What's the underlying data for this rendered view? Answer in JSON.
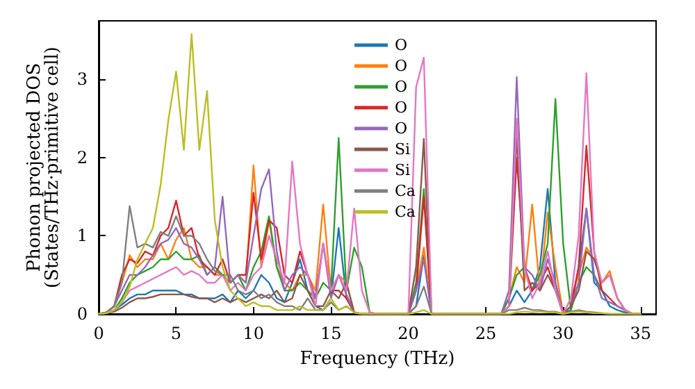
{
  "chart_data": {
    "type": "line",
    "xlabel": "Frequency (THz)",
    "ylabel": "Phonon projected DOS\n(States/THz·primitive cell)",
    "xlim": [
      0,
      36
    ],
    "ylim": [
      0,
      3.75
    ],
    "xticks": [
      0,
      5,
      10,
      15,
      20,
      25,
      30,
      35
    ],
    "yticks": [
      0,
      1,
      2,
      3
    ],
    "grid": false,
    "legend": "top",
    "marker": "none",
    "line_style": "solid",
    "x": [
      0,
      0.5,
      1,
      1.5,
      2,
      2.5,
      3,
      3.5,
      4,
      4.5,
      5,
      5.5,
      6,
      6.5,
      7,
      7.5,
      8,
      8.5,
      9,
      9.5,
      10,
      10.5,
      11,
      11.5,
      12,
      12.5,
      13,
      13.5,
      14,
      14.5,
      15,
      15.5,
      16,
      16.5,
      17,
      17.5,
      18,
      18.5,
      19,
      19.5,
      20,
      20.5,
      21,
      21.5,
      22,
      22.5,
      23,
      23.5,
      24,
      24.5,
      25,
      25.5,
      26,
      26.5,
      27,
      27.5,
      28,
      28.5,
      29,
      29.5,
      30,
      30.5,
      31,
      31.5,
      32,
      32.5,
      33,
      33.5,
      34,
      34.5,
      35
    ],
    "series": [
      {
        "name": "O",
        "color": "#1f77b4",
        "values": [
          0,
          0.01,
          0.05,
          0.12,
          0.2,
          0.25,
          0.25,
          0.3,
          0.3,
          0.3,
          0.3,
          0.25,
          0.25,
          0.2,
          0.2,
          0.2,
          0.25,
          0.15,
          0.3,
          0.2,
          0.3,
          0.5,
          0.4,
          0.2,
          0.15,
          0.4,
          0.7,
          0.3,
          0.1,
          0.05,
          0.2,
          1.1,
          0.2,
          0.02,
          0,
          0,
          0,
          0,
          0,
          0,
          0,
          0.1,
          0.75,
          0,
          0,
          0,
          0,
          0,
          0,
          0,
          0,
          0,
          0,
          0.1,
          0.3,
          0.15,
          0.3,
          0.6,
          1.6,
          0.4,
          0,
          0.05,
          0.6,
          1.35,
          0.4,
          0.3,
          0.1,
          0.05,
          0.02,
          0,
          0
        ]
      },
      {
        "name": "O",
        "color": "#ff7f0e",
        "values": [
          null,
          null,
          0.1,
          0.4,
          0.75,
          0.6,
          0.7,
          0.7,
          0.9,
          0.7,
          0.95,
          1.1,
          0.7,
          0.6,
          0.6,
          0.5,
          0.5,
          0.4,
          0.5,
          0.4,
          1.9,
          0.6,
          1.2,
          0.6,
          0.4,
          0.3,
          0.5,
          0.5,
          0.3,
          1.4,
          0.3,
          0.5,
          0.4,
          0.02,
          0,
          0,
          0,
          0,
          0,
          0,
          0,
          0.3,
          0.85,
          0,
          0,
          0,
          0,
          0,
          0,
          0,
          0,
          0,
          0,
          0.2,
          0.6,
          0.4,
          1.4,
          0.3,
          1.3,
          0.6,
          0,
          0.2,
          0.5,
          0.85,
          0.7,
          0.4,
          0.55,
          0.2,
          0.05,
          null,
          null
        ]
      },
      {
        "name": "O",
        "color": "#2ca02c",
        "values": [
          0,
          0.01,
          0.05,
          0.2,
          0.4,
          0.5,
          0.55,
          0.6,
          0.7,
          0.7,
          0.8,
          0.7,
          0.7,
          0.75,
          0.5,
          0.6,
          0.5,
          0.4,
          0.5,
          0.3,
          0.6,
          0.8,
          1.25,
          0.6,
          0.3,
          0.3,
          0.4,
          0.3,
          0.2,
          0.4,
          0.3,
          2.25,
          0.3,
          0.85,
          0.6,
          0.02,
          0,
          0,
          0,
          0,
          0,
          0.4,
          1.6,
          0,
          0,
          0,
          0,
          0,
          0,
          0,
          0,
          0,
          0,
          0.2,
          0.5,
          0.6,
          0.3,
          0.5,
          0.9,
          2.75,
          0.9,
          0.05,
          0.4,
          0.6,
          0.5,
          0.3,
          null,
          null,
          null,
          null,
          null
        ]
      },
      {
        "name": "O",
        "color": "#d62728",
        "values": [
          0,
          0.02,
          0.1,
          0.5,
          0.7,
          0.65,
          0.8,
          0.75,
          1.0,
          1.1,
          1.45,
          1.0,
          1.1,
          0.7,
          0.6,
          0.5,
          0.7,
          0.4,
          0.5,
          0.5,
          1.55,
          0.7,
          1.2,
          1.1,
          0.5,
          0.4,
          0.8,
          0.5,
          0.2,
          0.9,
          0.3,
          0.3,
          0.2,
          0.02,
          0,
          0,
          0,
          0,
          0,
          0,
          0,
          0.3,
          1.5,
          0,
          0,
          0,
          0,
          0,
          0,
          0,
          0,
          0,
          0,
          0.1,
          2.0,
          0.6,
          0.3,
          0.4,
          0.6,
          0.3,
          0,
          0.1,
          0.6,
          2.15,
          0.8,
          0.3,
          0.2,
          0.1,
          0.05,
          0,
          0
        ]
      },
      {
        "name": "O",
        "color": "#9467bd",
        "values": [
          0,
          0.02,
          0.1,
          0.3,
          0.5,
          0.5,
          0.6,
          0.75,
          0.9,
          0.95,
          1.1,
          0.9,
          0.85,
          0.7,
          0.5,
          0.6,
          1.5,
          0.4,
          0.5,
          0.4,
          1.0,
          1.6,
          1.85,
          0.8,
          0.3,
          0.5,
          0.6,
          0.5,
          0.2,
          0.9,
          0.2,
          0.5,
          0.25,
          0.02,
          0,
          0,
          0,
          0,
          0,
          0,
          0,
          0.3,
          0.7,
          0,
          0,
          0,
          0,
          0,
          0,
          0,
          0,
          0,
          0,
          0.3,
          3.03,
          0.6,
          0.5,
          0.3,
          0.7,
          0.4,
          0,
          0.1,
          0.4,
          1.35,
          0.5,
          0.2,
          0.15,
          0.1,
          0.05,
          0,
          0
        ]
      },
      {
        "name": "Si",
        "color": "#8c564b",
        "values": [
          0,
          0.01,
          0.03,
          0.08,
          0.15,
          0.2,
          0.2,
          0.22,
          0.25,
          0.25,
          0.25,
          0.25,
          0.22,
          0.2,
          0.2,
          0.15,
          0.2,
          0.15,
          0.2,
          0.15,
          0.2,
          0.25,
          0.2,
          0.3,
          0.15,
          0.2,
          0.5,
          0.3,
          0.1,
          0.1,
          0.3,
          0.2,
          0.4,
          0.02,
          0,
          0,
          0,
          0,
          0,
          0,
          0,
          0.6,
          2.24,
          0,
          0,
          0,
          0,
          0,
          0,
          0,
          0,
          0,
          0,
          0.1,
          2.3,
          0.3,
          0.4,
          0.3,
          0.5,
          0.3,
          0,
          0.1,
          0.3,
          0.8,
          0.7,
          0.4,
          0.5,
          0.2,
          0.05,
          0,
          0
        ]
      },
      {
        "name": "Si",
        "color": "#e377c2",
        "values": [
          0,
          0.01,
          0.05,
          0.15,
          0.3,
          0.35,
          0.4,
          0.45,
          0.5,
          0.55,
          0.6,
          0.5,
          0.55,
          0.5,
          0.4,
          0.4,
          0.5,
          0.3,
          0.4,
          0.3,
          0.5,
          0.6,
          1.0,
          0.7,
          0.4,
          1.95,
          0.9,
          0.5,
          0.1,
          0.9,
          0.3,
          0.5,
          0.3,
          1.35,
          0.3,
          0.02,
          0,
          0,
          0,
          0,
          0,
          2.9,
          3.28,
          0,
          0,
          0,
          0,
          0,
          0,
          0,
          0,
          0,
          0,
          0.1,
          2.5,
          0.6,
          0.2,
          0.4,
          0.8,
          0.3,
          0,
          0.2,
          1.0,
          3.08,
          0.8,
          0.4,
          0.5,
          0.2,
          0.05,
          0,
          0
        ]
      },
      {
        "name": "Ca",
        "color": "#7f7f7f",
        "values": [
          0,
          0.02,
          0.1,
          0.4,
          1.38,
          0.85,
          0.9,
          0.85,
          1.05,
          1.0,
          1.25,
          1.0,
          1.0,
          0.9,
          0.7,
          0.55,
          0.5,
          0.5,
          0.3,
          0.25,
          0.3,
          0.2,
          0.25,
          0.15,
          0.1,
          0.1,
          0.05,
          0.2,
          0.05,
          0.05,
          0.15,
          0.05,
          0.1,
          0.02,
          0,
          0,
          0,
          0,
          0,
          0,
          0,
          0.1,
          0.35,
          0,
          0,
          0,
          0,
          0,
          0,
          0,
          0,
          0,
          0,
          0.05,
          0.05,
          0.08,
          0.05,
          0.05,
          0.03,
          0.03,
          0,
          0.03,
          0.05,
          0.03,
          0.02,
          0.01,
          0,
          0,
          0,
          0,
          0
        ]
      },
      {
        "name": "Ca",
        "color": "#bcbd22",
        "values": [
          0,
          0.01,
          0.05,
          0.15,
          0.35,
          0.7,
          0.9,
          1.1,
          1.65,
          2.48,
          3.1,
          2.1,
          3.58,
          2.1,
          2.85,
          1.2,
          0.6,
          0.3,
          0.2,
          0.1,
          0.15,
          0.1,
          0.1,
          0.05,
          0.05,
          0.05,
          0.1,
          0.05,
          0.05,
          0.05,
          0.2,
          0.05,
          0.1,
          0.02,
          0,
          0,
          0,
          0,
          0,
          0,
          0,
          0.02,
          0.05,
          0,
          0,
          0,
          0,
          0,
          0,
          0,
          0,
          0,
          0,
          0,
          0.02,
          0.03,
          0.02,
          0.03,
          0.02,
          0.02,
          0,
          0.02,
          0.03,
          0.02,
          0.01,
          0.01,
          0,
          0,
          0,
          0,
          0
        ]
      }
    ]
  }
}
